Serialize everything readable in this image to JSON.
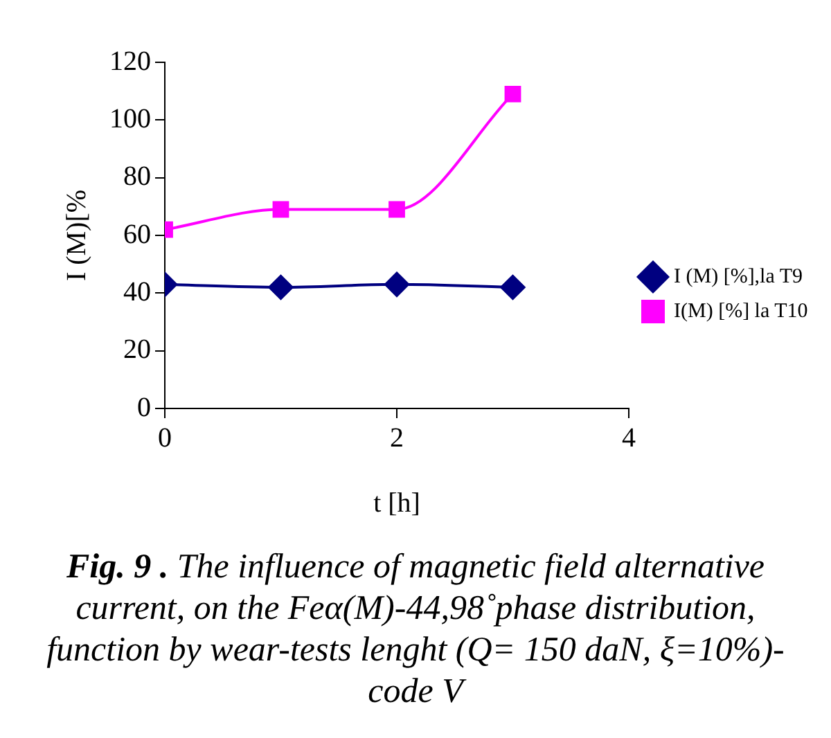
{
  "chart_data": {
    "type": "line",
    "title": "Fig. 9 .",
    "subtitle": "The influence of magnetic field alternative current, on the  Feα(M)-44,98˚phase distribution, function by wear-tests lenght (Q= 150 daN, ξ=10%)-code V",
    "xlabel": "t [h]",
    "ylabel": "I (M)[%",
    "x": [
      0,
      1,
      2,
      3
    ],
    "xlim": [
      0,
      4
    ],
    "xticks": [
      0,
      2,
      4
    ],
    "ylim": [
      0,
      120
    ],
    "yticks": [
      0,
      20,
      40,
      60,
      80,
      100,
      120
    ],
    "grid": false,
    "legend": "right",
    "line_style": "solid",
    "series": [
      {
        "name": "I (M) [%],la T9",
        "color": "#000080",
        "marker": "diamond",
        "values": [
          43,
          42,
          43,
          42
        ]
      },
      {
        "name": "I(M) [%] la T10",
        "color": "#ff00ff",
        "marker": "square",
        "values": [
          62,
          69,
          69,
          109
        ]
      }
    ]
  }
}
